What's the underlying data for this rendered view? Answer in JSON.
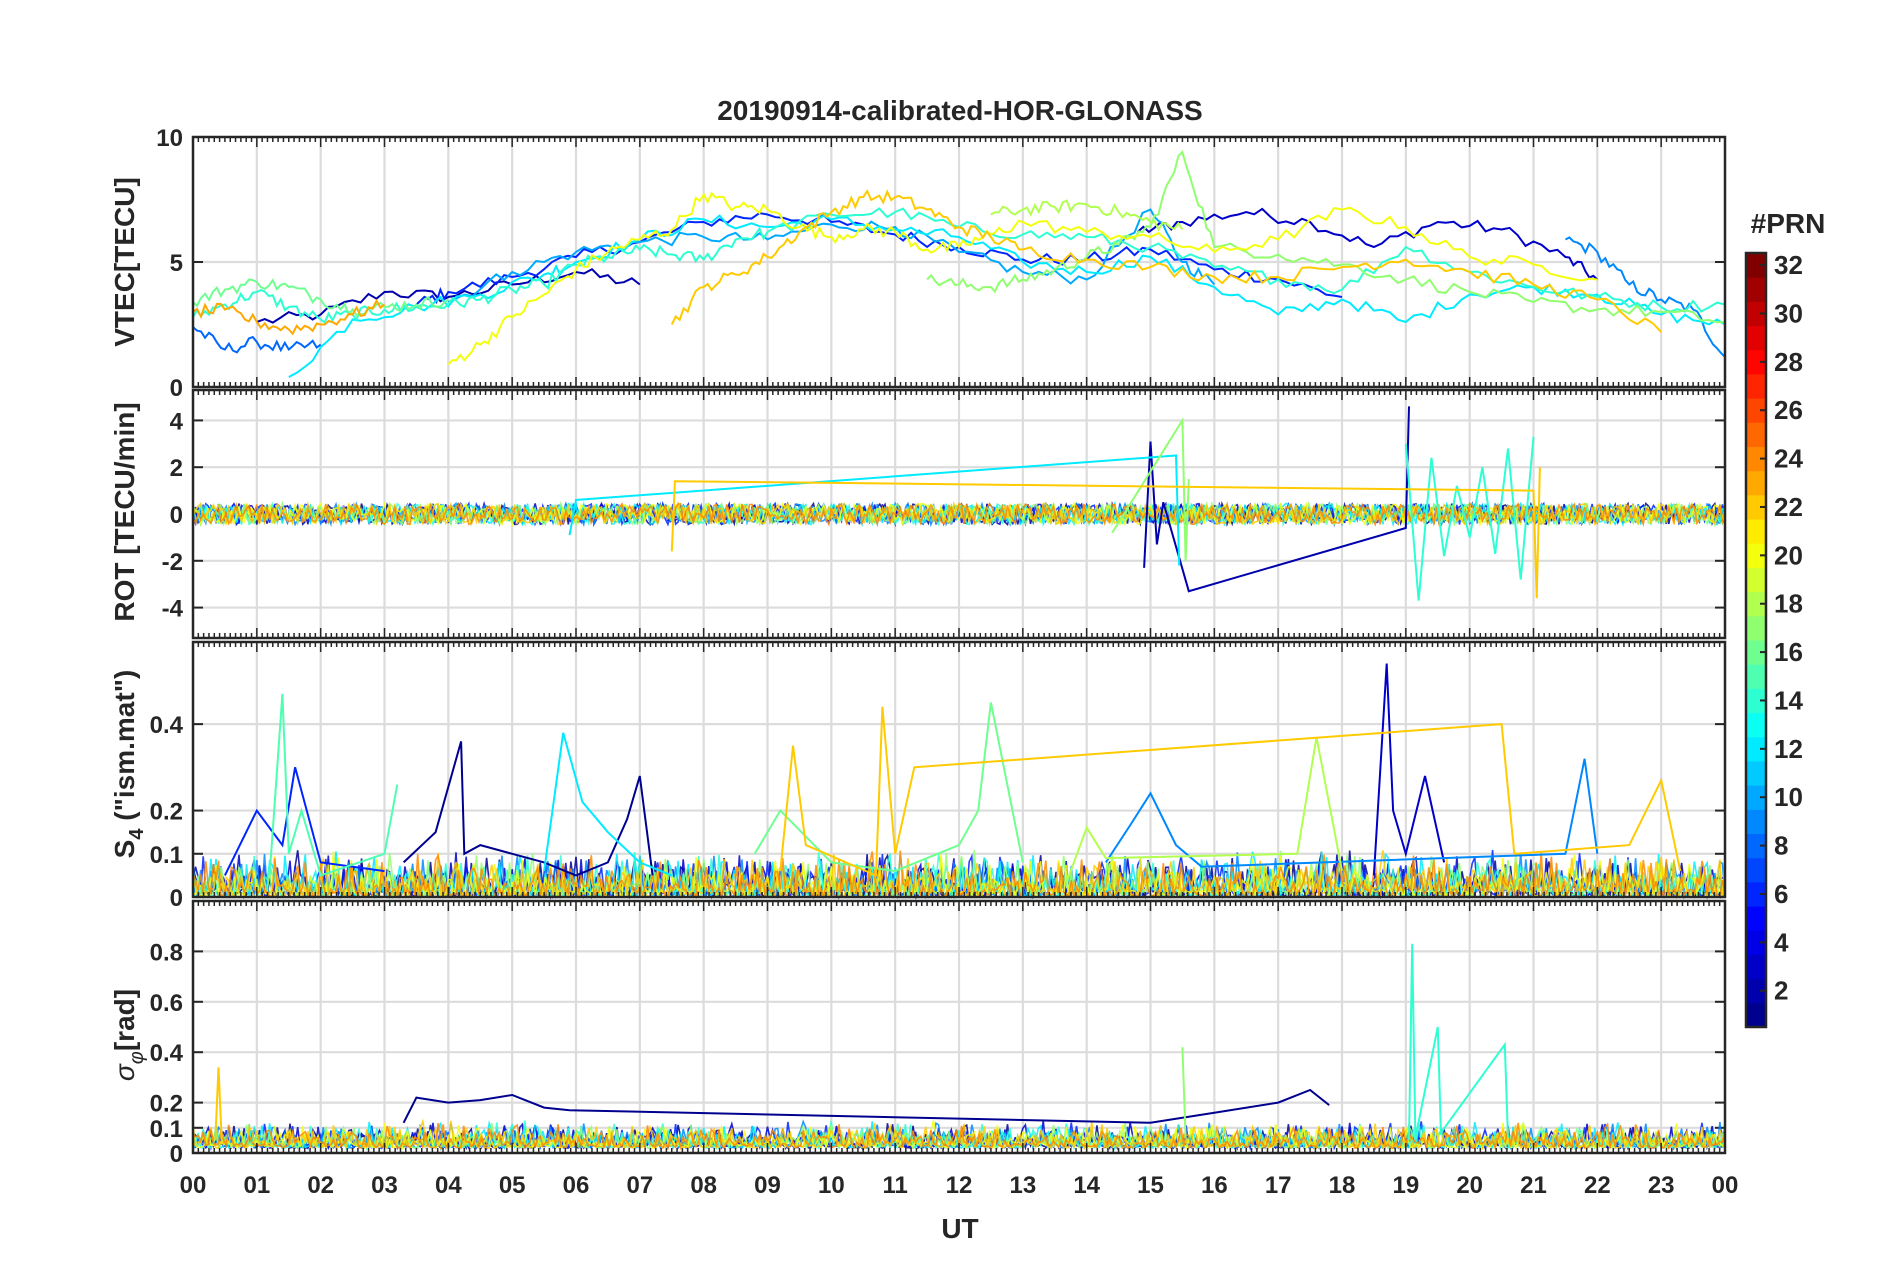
{
  "figure": {
    "title": "20190914-calibrated-HOR-GLONASS",
    "xlabel": "UT",
    "x_ticks": [
      "00",
      "01",
      "02",
      "03",
      "04",
      "05",
      "06",
      "07",
      "08",
      "09",
      "10",
      "11",
      "12",
      "13",
      "14",
      "15",
      "16",
      "17",
      "18",
      "19",
      "20",
      "21",
      "22",
      "23",
      "00"
    ]
  },
  "colorbar": {
    "label": "#PRN",
    "ticks": [
      "2",
      "4",
      "6",
      "8",
      "10",
      "12",
      "14",
      "16",
      "18",
      "20",
      "22",
      "24",
      "26",
      "28",
      "30",
      "32"
    ],
    "range": [
      1,
      32
    ],
    "colormap": [
      "#00008f",
      "#0000ff",
      "#0080ff",
      "#00ffff",
      "#80ff80",
      "#ffff00",
      "#ff8000",
      "#ff0000",
      "#800000"
    ]
  },
  "chart_data": [
    {
      "type": "line",
      "panel": "vtec",
      "ylabel": "VTEC[TECU]",
      "ylim": [
        0,
        10
      ],
      "ytick_labels": [
        "0",
        "5",
        "10"
      ],
      "xlim": [
        0,
        24
      ],
      "series": [
        {
          "prn": 2,
          "x": [
            1.0,
            2.0,
            3.0,
            4.0,
            5.0,
            6.0,
            7.0
          ],
          "y": [
            2.6,
            2.9,
            3.8,
            3.6,
            4.1,
            4.6,
            4.1
          ]
        },
        {
          "prn": 3,
          "x": [
            14.8,
            15.5,
            16.5,
            17.5,
            18.5,
            19.5,
            20.5,
            21.5,
            22.0
          ],
          "y": [
            6.2,
            6.6,
            7.0,
            6.6,
            5.6,
            6.6,
            6.3,
            5.2,
            4.3
          ]
        },
        {
          "prn": 6,
          "x": [
            3.5,
            4.0,
            5.0,
            6.0,
            7.0,
            8.0,
            9.0,
            10.0,
            11.0,
            12.0,
            13.0,
            14.0,
            15.0,
            16.0,
            17.0,
            18.0
          ],
          "y": [
            3.3,
            3.8,
            4.4,
            5.2,
            5.8,
            6.6,
            6.9,
            6.6,
            6.1,
            5.6,
            5.1,
            5.1,
            5.5,
            4.7,
            4.3,
            3.6
          ]
        },
        {
          "prn": 8,
          "x": [
            0.0,
            0.5,
            1.0,
            1.5,
            2.0
          ],
          "y": [
            2.4,
            1.5,
            1.8,
            1.5,
            1.7
          ]
        },
        {
          "prn": 9,
          "x": [
            21.5,
            22.0,
            22.5,
            23.0,
            23.5,
            24.0
          ],
          "y": [
            5.9,
            5.4,
            4.1,
            3.5,
            3.1,
            1.2
          ]
        },
        {
          "prn": 10,
          "x": [
            4.0,
            5.0,
            6.0,
            7.0,
            8.0,
            9.0,
            10.0,
            11.0,
            12.0,
            13.0,
            14.0,
            15.0,
            15.5,
            16.0
          ],
          "y": [
            3.4,
            4.6,
            5.4,
            5.8,
            6.0,
            5.9,
            6.5,
            6.4,
            5.4,
            4.6,
            4.3,
            7.1,
            5.0,
            4.1
          ]
        },
        {
          "prn": 12,
          "x": [
            1.5,
            2.5,
            3.5,
            4.5,
            5.5,
            6.0,
            7.0,
            8.0,
            9.0,
            10.0,
            11.0,
            12.0,
            13.0,
            14.0,
            15.0,
            16.0,
            17.0,
            18.0,
            19.0,
            20.0,
            21.0,
            22.0,
            23.0,
            24.0
          ],
          "y": [
            0.4,
            2.7,
            3.2,
            3.7,
            4.5,
            5.0,
            5.9,
            6.7,
            6.4,
            6.7,
            6.3,
            6.0,
            5.0,
            4.6,
            5.2,
            4.0,
            2.9,
            3.5,
            2.6,
            3.7,
            4.0,
            3.7,
            2.9,
            2.5
          ]
        },
        {
          "prn": 14,
          "x": [
            0.0,
            0.5,
            1.0,
            1.5,
            2.0,
            2.5,
            3.0,
            3.5,
            4.0,
            4.5,
            5.0,
            5.5,
            6.0,
            6.5,
            7.0,
            7.5,
            8.0,
            8.5,
            9.0,
            10.0,
            11.0,
            12.0,
            13.0,
            14.0,
            15.0,
            16.0,
            17.0,
            18.0,
            19.0,
            20.0,
            21.0,
            22.0,
            23.0,
            24.0
          ],
          "y": [
            2.8,
            3.3,
            3.8,
            3.2,
            2.7,
            2.9,
            3.1,
            3.2,
            3.3,
            3.5,
            3.9,
            4.1,
            4.9,
            5.2,
            5.5,
            5.3,
            5.1,
            5.9,
            6.2,
            6.9,
            7.0,
            6.4,
            6.1,
            6.0,
            5.6,
            4.8,
            4.3,
            3.9,
            5.6,
            4.6,
            4.0,
            3.6,
            3.2,
            3.3
          ]
        },
        {
          "prn": 16,
          "x": [
            0.0,
            0.5,
            1.0,
            1.5,
            2.0,
            2.5,
            3.0,
            3.5,
            4.0
          ],
          "y": [
            3.4,
            3.9,
            4.2,
            4.0,
            3.5,
            3.1,
            3.2,
            3.3,
            3.5
          ]
        },
        {
          "prn": 17,
          "x": [
            11.5,
            12.0,
            12.5,
            13.0,
            13.5,
            14.0,
            14.5,
            15.0,
            15.5,
            16.0,
            17.0,
            18.0,
            19.0,
            20.0,
            21.0,
            22.0,
            23.0,
            24.0
          ],
          "y": [
            4.3,
            4.1,
            4.0,
            4.3,
            4.7,
            5.2,
            5.7,
            6.4,
            9.4,
            5.6,
            5.3,
            4.9,
            4.3,
            3.8,
            3.4,
            3.1,
            3.0,
            2.6
          ]
        },
        {
          "prn": 18,
          "x": [
            12.5,
            13.0,
            13.5,
            14.0,
            14.5,
            15.0,
            15.5
          ],
          "y": [
            6.9,
            7.1,
            7.2,
            7.3,
            7.0,
            6.6,
            6.3
          ]
        },
        {
          "prn": 20,
          "x": [
            4.0,
            4.5,
            5.0,
            5.5,
            6.0,
            6.5,
            7.0,
            7.5,
            8.0,
            8.5,
            9.0,
            9.5,
            10.0,
            10.5,
            11.0,
            11.5,
            12.0,
            12.5,
            13.0,
            14.0,
            15.0,
            16.0,
            17.0,
            18.0,
            19.0,
            20.0,
            21.0,
            22.0
          ],
          "y": [
            0.9,
            1.7,
            2.8,
            3.7,
            4.7,
            5.4,
            5.9,
            6.3,
            7.7,
            7.2,
            7.1,
            6.4,
            6.0,
            6.3,
            6.2,
            5.5,
            5.6,
            6.1,
            6.6,
            6.2,
            6.0,
            5.4,
            5.9,
            7.1,
            6.4,
            5.2,
            4.9,
            4.3
          ]
        },
        {
          "prn": 22,
          "x": [
            7.5,
            8.0,
            8.5,
            9.0,
            9.5,
            10.0,
            10.5,
            11.0,
            11.5,
            12.0,
            12.5,
            13.0,
            14.0,
            15.0,
            16.0,
            17.0,
            18.0,
            19.0,
            20.0,
            21.0,
            22.0,
            23.0
          ],
          "y": [
            2.5,
            4.0,
            4.5,
            5.2,
            6.2,
            7.0,
            7.6,
            7.6,
            7.1,
            6.4,
            6.0,
            5.5,
            5.1,
            4.8,
            4.4,
            4.4,
            4.8,
            5.1,
            4.6,
            4.1,
            3.5,
            2.2
          ]
        },
        {
          "prn": 23,
          "x": [
            0.0,
            0.5,
            1.0,
            1.5,
            2.0,
            2.5,
            3.0
          ],
          "y": [
            3.0,
            3.1,
            2.6,
            2.3,
            2.5,
            2.9,
            3.3
          ]
        }
      ]
    },
    {
      "type": "line",
      "panel": "rot",
      "ylabel": "ROT [TECU/min]",
      "ylim": [
        -5.3,
        5.3
      ],
      "ytick_labels": [
        "-4",
        "-2",
        "0",
        "2",
        "4"
      ],
      "xlim": [
        0,
        24
      ],
      "series": [
        {
          "prn": 2,
          "x": [
            14.9,
            15.0,
            15.1,
            15.2,
            15.6,
            19.0,
            19.05
          ],
          "y": [
            -2.3,
            3.1,
            -1.3,
            0.5,
            -3.3,
            -0.6,
            4.6
          ]
        },
        {
          "prn": 12,
          "x": [
            5.9,
            6.0,
            15.4,
            15.45
          ],
          "y": [
            -0.9,
            0.6,
            2.5,
            -2.2
          ]
        },
        {
          "prn": 14,
          "x": [
            19.0,
            19.2,
            19.4,
            19.6,
            19.8,
            20.0,
            20.2,
            20.4,
            20.6,
            20.8,
            21.0
          ],
          "y": [
            3.0,
            -3.7,
            2.4,
            -1.8,
            1.2,
            -1.0,
            2.0,
            -1.7,
            2.8,
            -2.8,
            3.3
          ]
        },
        {
          "prn": 17,
          "x": [
            14.4,
            15.5,
            15.55,
            15.6
          ],
          "y": [
            -0.8,
            4.0,
            -2.0,
            1.5
          ]
        },
        {
          "prn": 22,
          "x": [
            7.5,
            7.55,
            21.0,
            21.05,
            21.1
          ],
          "y": [
            -1.6,
            1.4,
            1.0,
            -3.6,
            2.0
          ]
        }
      ],
      "note_background": "dense noise within about ±0.5 for all PRNs across the full day"
    },
    {
      "type": "line",
      "panel": "s4",
      "ylabel_main": "S",
      "ylabel_sub": "4",
      "ylabel_rest": " (\"ism.mat\")",
      "ylim": [
        0,
        0.59
      ],
      "ytick_labels": [
        "0",
        "0.1",
        "0.2",
        "0.4"
      ],
      "xlim": [
        0,
        24
      ],
      "series": [
        {
          "prn": 1,
          "x": [
            3.3,
            3.8,
            4.2,
            4.25,
            4.5,
            5.0,
            5.5,
            6.0,
            6.5,
            6.8,
            7.0,
            7.2
          ],
          "y": [
            0.08,
            0.15,
            0.36,
            0.1,
            0.12,
            0.1,
            0.08,
            0.05,
            0.08,
            0.18,
            0.28,
            0.05
          ]
        },
        {
          "prn": 3,
          "x": [
            18.5,
            18.7,
            18.8,
            19.0,
            19.3,
            19.6
          ],
          "y": [
            0.05,
            0.54,
            0.2,
            0.1,
            0.28,
            0.08
          ]
        },
        {
          "prn": 6,
          "x": [
            0.5,
            1.0,
            1.4,
            1.6,
            2.0,
            3.0
          ],
          "y": [
            0.05,
            0.2,
            0.12,
            0.3,
            0.08,
            0.06
          ]
        },
        {
          "prn": 9,
          "x": [
            14.3,
            14.7,
            15.0,
            15.4,
            15.8,
            21.5,
            21.8,
            22.0
          ],
          "y": [
            0.08,
            0.17,
            0.24,
            0.12,
            0.07,
            0.1,
            0.32,
            0.1
          ]
        },
        {
          "prn": 12,
          "x": [
            5.5,
            5.8,
            6.1,
            6.5,
            7.0,
            7.5
          ],
          "y": [
            0.06,
            0.38,
            0.22,
            0.15,
            0.08,
            0.05
          ]
        },
        {
          "prn": 15,
          "x": [
            1.2,
            1.4,
            1.5,
            1.7,
            2.0,
            3.0,
            3.2
          ],
          "y": [
            0.05,
            0.47,
            0.1,
            0.2,
            0.05,
            0.1,
            0.26
          ]
        },
        {
          "prn": 16,
          "x": [
            8.8,
            9.2,
            10.0,
            11.0,
            12.0,
            12.3,
            12.5,
            13.0
          ],
          "y": [
            0.1,
            0.2,
            0.08,
            0.06,
            0.12,
            0.2,
            0.45,
            0.08
          ]
        },
        {
          "prn": 18,
          "x": [
            13.7,
            14.0,
            14.3,
            17.3,
            17.6,
            18.0
          ],
          "y": [
            0.04,
            0.16,
            0.09,
            0.1,
            0.37,
            0.06
          ]
        },
        {
          "prn": 22,
          "x": [
            9.2,
            9.4,
            9.6,
            10.7,
            10.8,
            11.0,
            11.3,
            20.5,
            20.7,
            22.5,
            23.0,
            23.3
          ],
          "y": [
            0.06,
            0.35,
            0.12,
            0.05,
            0.44,
            0.1,
            0.3,
            0.4,
            0.1,
            0.12,
            0.27,
            0.06
          ]
        }
      ],
      "note_background": "dense noise between 0 and about 0.1 for all PRNs across the full day"
    },
    {
      "type": "line",
      "panel": "sigma_phi",
      "ylabel_main": "σ",
      "ylabel_sub": "φ",
      "ylabel_rest": "[rad]",
      "ylim": [
        0,
        1.0
      ],
      "ytick_labels": [
        "0",
        "0.1",
        "0.2",
        "0.4",
        "0.6",
        "0.8"
      ],
      "xlim": [
        0,
        24
      ],
      "series": [
        {
          "prn": 1,
          "x": [
            3.3,
            3.5,
            4.0,
            4.5,
            5.0,
            5.5,
            5.9,
            15.0,
            16.0,
            17.0,
            17.5,
            17.8
          ],
          "y": [
            0.12,
            0.22,
            0.2,
            0.21,
            0.23,
            0.18,
            0.17,
            0.12,
            0.16,
            0.2,
            0.25,
            0.19
          ]
        },
        {
          "prn": 14,
          "x": [
            19.05,
            19.1,
            19.15,
            19.5,
            19.55,
            20.55,
            20.6
          ],
          "y": [
            0.05,
            0.83,
            0.06,
            0.5,
            0.08,
            0.43,
            0.06
          ]
        },
        {
          "prn": 17,
          "x": [
            15.5,
            15.55
          ],
          "y": [
            0.42,
            0.06
          ]
        },
        {
          "prn": 22,
          "x": [
            0.35,
            0.4,
            0.45
          ],
          "y": [
            0.05,
            0.34,
            0.05
          ]
        }
      ],
      "note_background": "dense noise between 0 and about 0.12 for all PRNs across the full day"
    }
  ]
}
